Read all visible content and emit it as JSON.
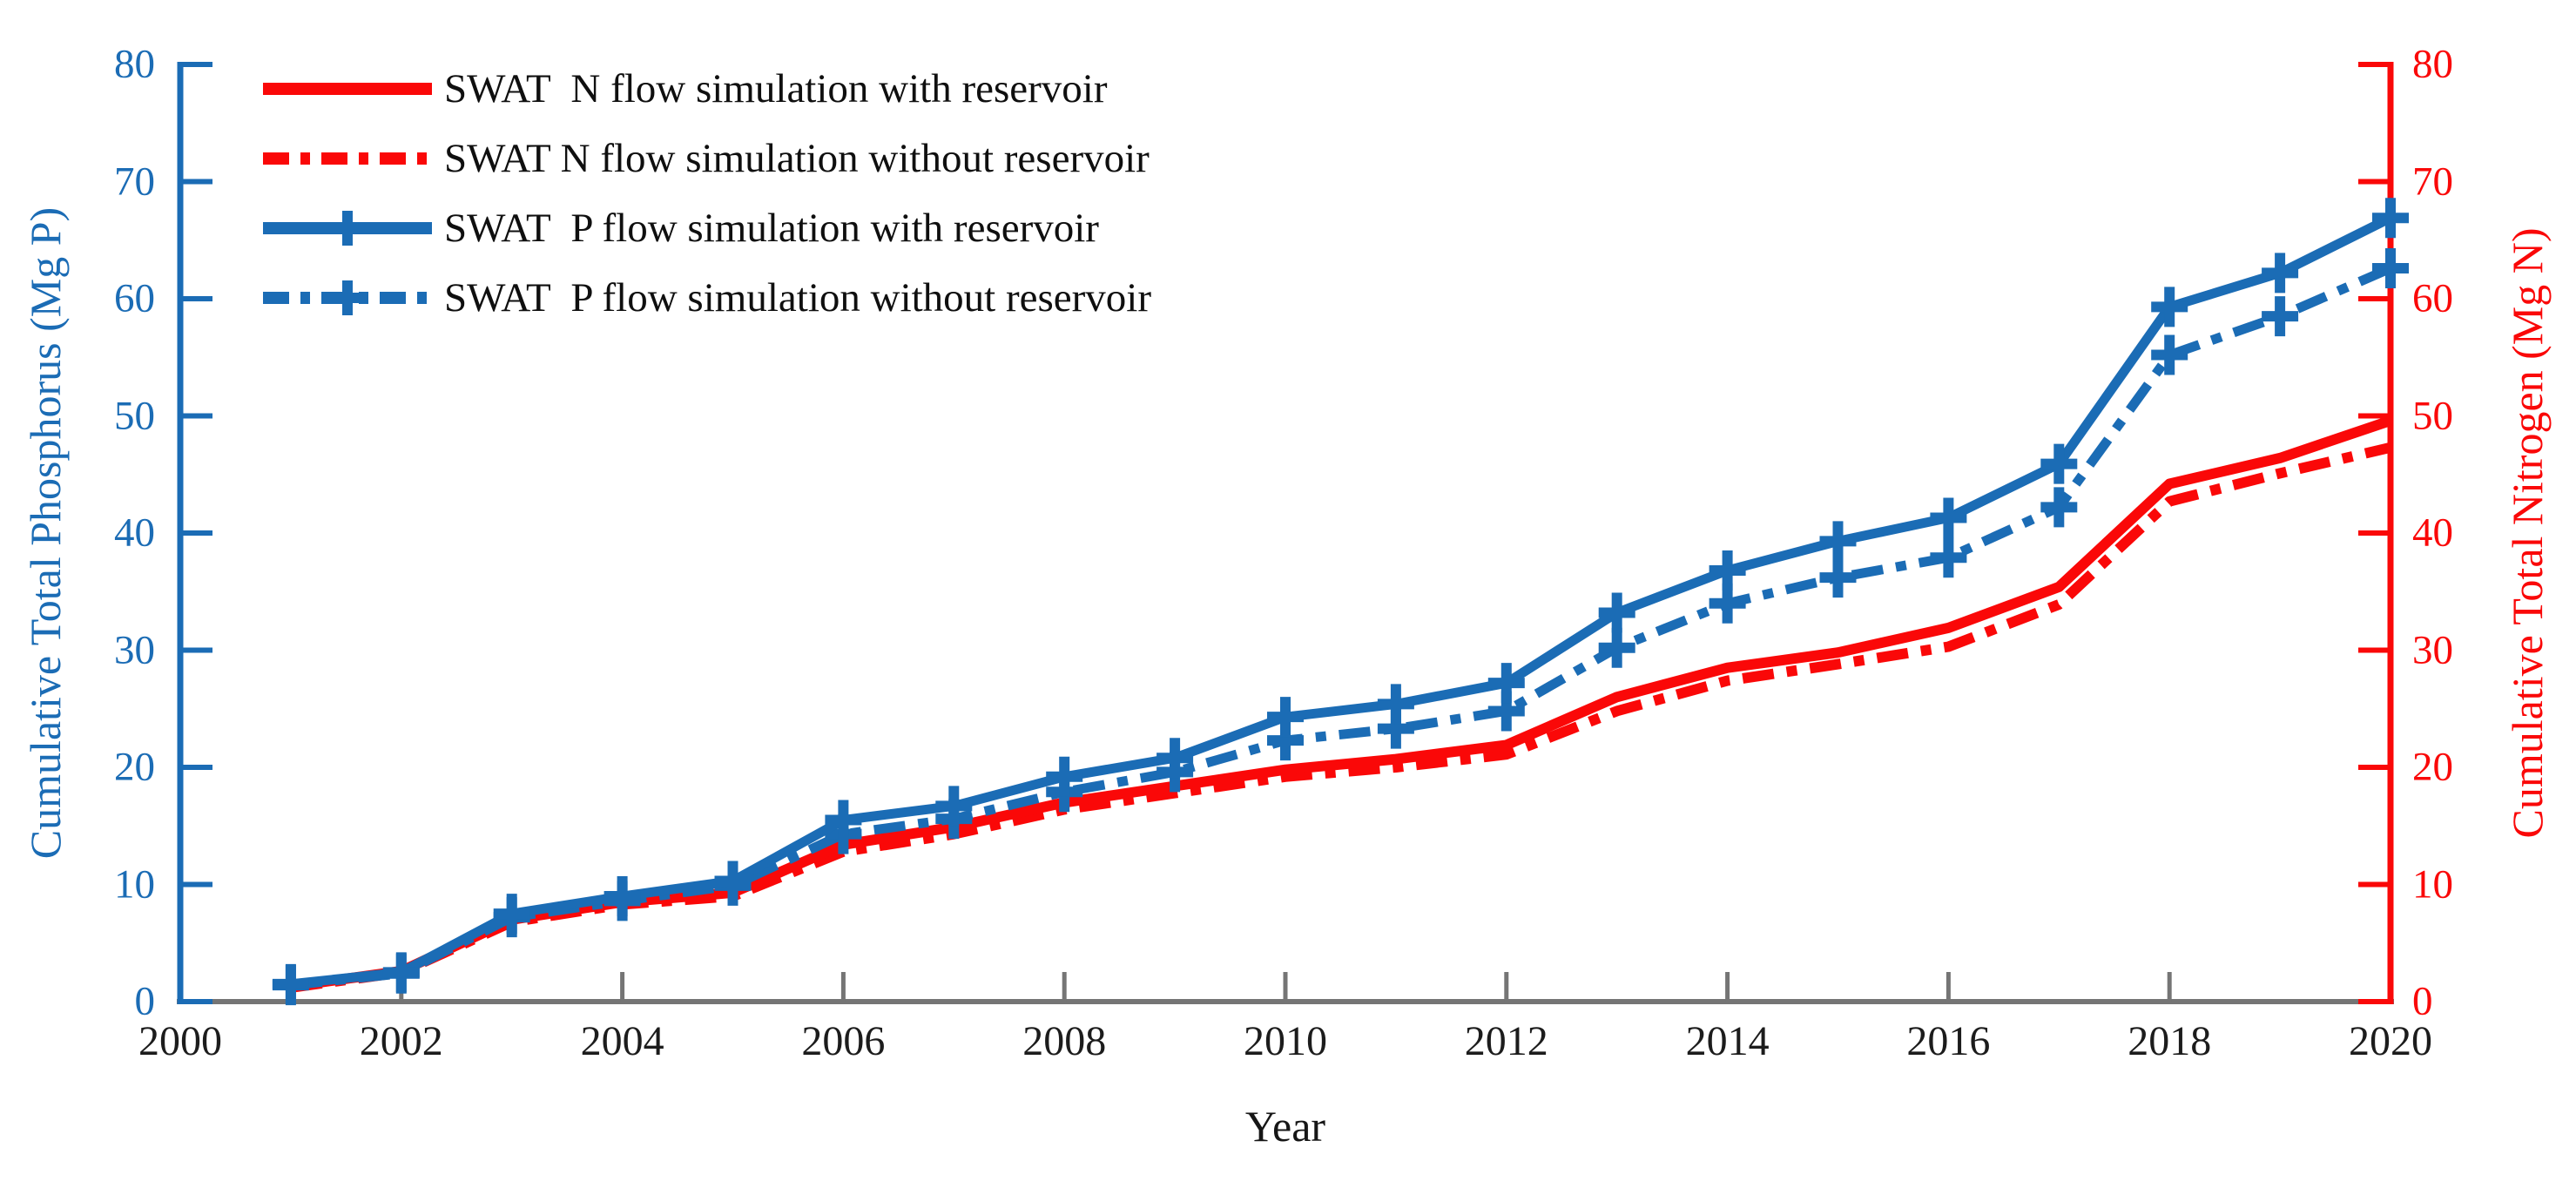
{
  "chart_data": {
    "type": "line",
    "title": "",
    "xlabel": "Year",
    "x_axis": {
      "min": 2000,
      "max": 2020,
      "tick_step": 2,
      "tick_color": "#1c1c1c",
      "axis_color": "#757575"
    },
    "left_axis": {
      "label": "Cumulative Total Phosphorus (Mg P)",
      "color": "#1b6cb5",
      "min": 0,
      "max": 80,
      "step": 10
    },
    "right_axis": {
      "label": "Cumulative Total Nitrogen (Mg N)",
      "color": "#fa0808",
      "min": 0,
      "max": 80,
      "step": 10
    },
    "years": [
      2001,
      2002,
      2003,
      2004,
      2005,
      2006,
      2007,
      2008,
      2009,
      2010,
      2011,
      2012,
      2013,
      2014,
      2015,
      2016,
      2017,
      2018,
      2019,
      2020
    ],
    "series": [
      {
        "name": "SWAT  N flow simulation with reservoir",
        "axis": "right",
        "color": "#fa0808",
        "line_style": "solid",
        "marker": "none",
        "values": [
          1.3,
          2.6,
          7.0,
          8.5,
          9.3,
          13.4,
          14.9,
          17.0,
          18.4,
          19.8,
          20.7,
          21.9,
          26.0,
          28.5,
          29.8,
          31.9,
          35.4,
          44.2,
          46.4,
          49.6
        ]
      },
      {
        "name": "SWAT N flow simulation without reservoir",
        "axis": "right",
        "color": "#fa0808",
        "line_style": "dashdot",
        "marker": "none",
        "values": [
          1.2,
          2.5,
          6.8,
          8.3,
          9.0,
          12.8,
          14.3,
          16.4,
          17.8,
          19.2,
          20.0,
          21.1,
          24.8,
          27.4,
          28.8,
          30.3,
          33.9,
          42.7,
          45.1,
          47.3
        ]
      },
      {
        "name": "SWAT  P flow simulation with reservoir",
        "axis": "left",
        "color": "#1b6cb5",
        "line_style": "solid",
        "marker": "plus",
        "values": [
          1.5,
          2.5,
          7.5,
          9.0,
          10.3,
          15.5,
          16.7,
          19.2,
          20.8,
          24.3,
          25.4,
          27.2,
          33.2,
          36.8,
          39.3,
          41.3,
          45.9,
          59.3,
          62.2,
          66.9
        ]
      },
      {
        "name": "SWAT  P flow simulation without reservoir",
        "axis": "left",
        "color": "#1b6cb5",
        "line_style": "dashdot",
        "marker": "plus",
        "values": [
          1.4,
          2.4,
          7.2,
          8.6,
          9.9,
          14.3,
          15.6,
          17.9,
          19.6,
          22.3,
          23.3,
          24.8,
          30.2,
          34.0,
          36.2,
          37.9,
          42.2,
          55.2,
          58.5,
          62.6
        ]
      }
    ],
    "legend": {
      "position": "top-left-inside"
    },
    "grid": "off",
    "ylim_left": [
      0,
      80
    ],
    "ylim_right": [
      0,
      80
    ]
  }
}
